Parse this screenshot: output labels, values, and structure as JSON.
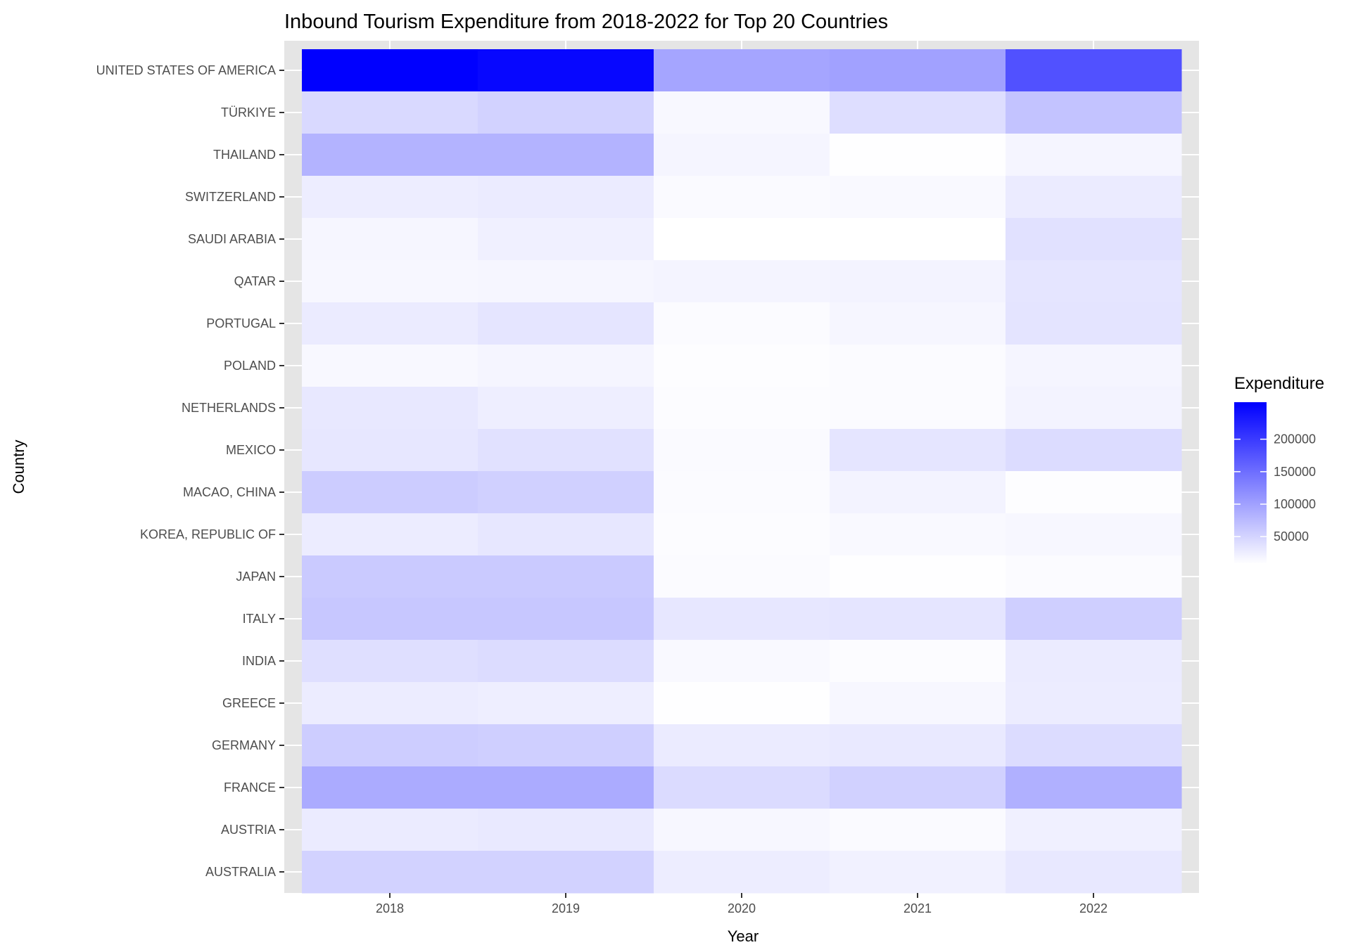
{
  "chart_data": {
    "type": "heatmap",
    "title": "Inbound Tourism Expenditure from 2018-2022 for Top 20 Countries",
    "xlabel": "Year",
    "ylabel": "Country",
    "x": [
      "2018",
      "2019",
      "2020",
      "2021",
      "2022"
    ],
    "y": [
      "UNITED STATES OF AMERICA",
      "TÜRKIYE",
      "THAILAND",
      "SWITZERLAND",
      "SAUDI ARABIA",
      "QATAR",
      "PORTUGAL",
      "POLAND",
      "NETHERLANDS",
      "MEXICO",
      "MACAO, CHINA",
      "KOREA, REPUBLIC OF",
      "JAPAN",
      "ITALY",
      "INDIA",
      "GREECE",
      "GERMANY",
      "FRANCE",
      "AUSTRIA",
      "AUSTRALIA"
    ],
    "values": [
      [
        257000,
        250000,
        96000,
        100000,
        178000
      ],
      [
        45000,
        52000,
        15000,
        40000,
        67000
      ],
      [
        82000,
        82000,
        18000,
        9000,
        18000
      ],
      [
        26000,
        28000,
        13000,
        14000,
        28000
      ],
      [
        17000,
        23000,
        8000,
        8000,
        37000
      ],
      [
        16000,
        17000,
        19000,
        20000,
        33000
      ],
      [
        28000,
        33000,
        12000,
        17000,
        34000
      ],
      [
        15000,
        18000,
        10000,
        12000,
        18000
      ],
      [
        30000,
        25000,
        11000,
        12000,
        20000
      ],
      [
        31000,
        37000,
        13000,
        33000,
        42000
      ],
      [
        58000,
        54000,
        12000,
        20000,
        10000
      ],
      [
        27000,
        31000,
        11000,
        14000,
        16000
      ],
      [
        60000,
        60000,
        12000,
        9000,
        12000
      ],
      [
        63000,
        63000,
        31000,
        33000,
        55000
      ],
      [
        39000,
        42000,
        14000,
        11000,
        28000
      ],
      [
        27000,
        25000,
        9000,
        16000,
        27000
      ],
      [
        57000,
        55000,
        28000,
        29000,
        42000
      ],
      [
        90000,
        90000,
        43000,
        53000,
        85000
      ],
      [
        28000,
        29000,
        16000,
        13000,
        23000
      ],
      [
        52000,
        52000,
        26000,
        22000,
        30000
      ]
    ],
    "color_scale": {
      "low": "#ffffff",
      "high": "#0000ff",
      "min": 8000,
      "max": 257000
    },
    "legend": {
      "title": "Expenditure",
      "ticks": [
        50000,
        100000,
        150000,
        200000
      ],
      "tick_labels": [
        "50000",
        "100000",
        "150000",
        "200000"
      ],
      "position": "right"
    },
    "panel_background": "#e5e5e5",
    "grid": true
  }
}
